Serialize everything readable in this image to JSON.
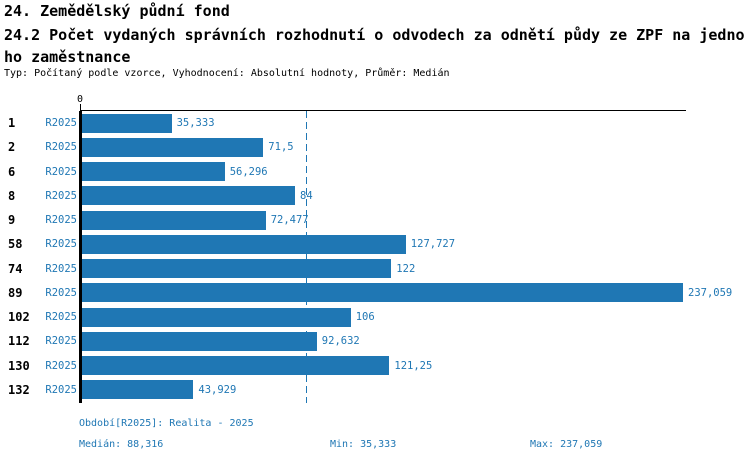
{
  "header": {
    "title": "24. Zemědělský půdní fond",
    "subtitle": "24.2 Počet vydaných správních rozhodnutí o odvodech za odnětí půdy ze ZPF na jednoho zaměstnance",
    "meta": "Typ: Počítaný podle vzorce, Vyhodnocení: Absolutní hodnoty, Průměr: Medián"
  },
  "chart_data": {
    "type": "bar",
    "orientation": "horizontal",
    "series_label": "R2025",
    "categories": [
      "1",
      "2",
      "6",
      "8",
      "9",
      "58",
      "74",
      "89",
      "102",
      "112",
      "130",
      "132"
    ],
    "values": [
      35.333,
      71.5,
      56.296,
      84,
      72.477,
      127.727,
      122,
      237.059,
      106,
      92.632,
      121.25,
      43.929
    ],
    "value_labels": [
      "35,333",
      "71,5",
      "56,296",
      "84",
      "72,477",
      "127,727",
      "122",
      "237,059",
      "106",
      "92,632",
      "121,25",
      "43,929"
    ],
    "x_axis": {
      "zero_label": "0",
      "min": 0,
      "max_value": 237.059
    },
    "median": 88.316,
    "bar_color": "#1f77b4",
    "label_color": "#1f77b4",
    "median_line_color": "#1f77b4",
    "axis_color": "#000000",
    "grid": false,
    "legend": "none"
  },
  "footer": {
    "period": "Období[R2025]: Realita - 2025",
    "median": "Medián: 88,316",
    "min": "Min: 35,333",
    "max": "Max: 237,059"
  }
}
